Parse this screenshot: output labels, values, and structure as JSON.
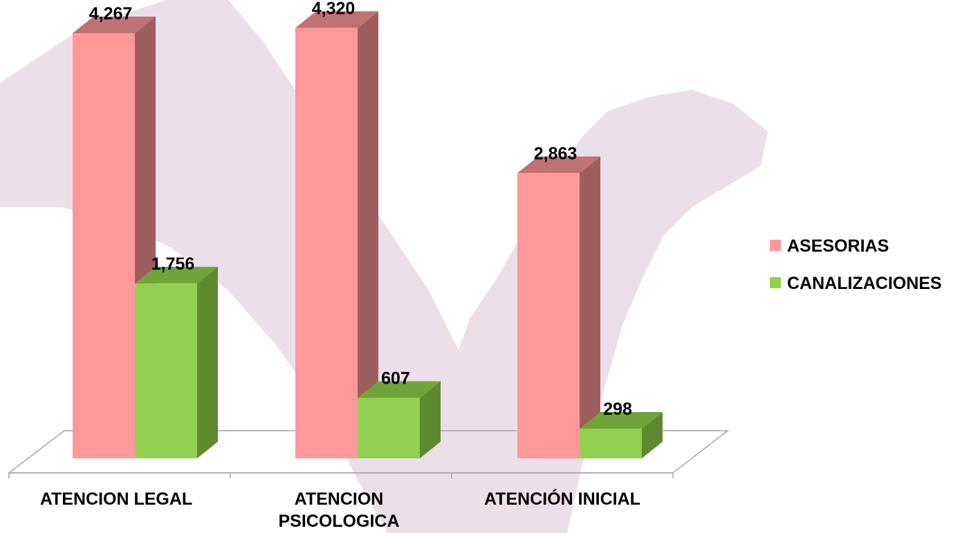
{
  "chart_data": {
    "type": "bar",
    "categories": [
      "ATENCION LEGAL",
      "ATENCION\nPSICOLOGICA",
      "ATENCIÓN INICIAL"
    ],
    "series": [
      {
        "name": "ASESORIAS",
        "values": [
          4267,
          4320,
          2863
        ],
        "labels": [
          "4,267",
          "4,320",
          "2,863"
        ],
        "color": "#ff9999"
      },
      {
        "name": "CANALIZACIONES",
        "values": [
          1756,
          607,
          298
        ],
        "labels": [
          "1,756",
          "607",
          "298"
        ],
        "color": "#92d050"
      }
    ],
    "ylim": [
      0,
      4500
    ],
    "grid": false,
    "legend_position": "right",
    "style": "3d-column"
  },
  "colors": {
    "asesorias_front": "#ff9999",
    "asesorias_side": "#a05d5d",
    "asesorias_top": "#bf7272",
    "canalizaciones_front": "#92d050",
    "canalizaciones_side": "#5e8a2f",
    "canalizaciones_top": "#6fa33a",
    "watermark": "#e6d7e2"
  }
}
